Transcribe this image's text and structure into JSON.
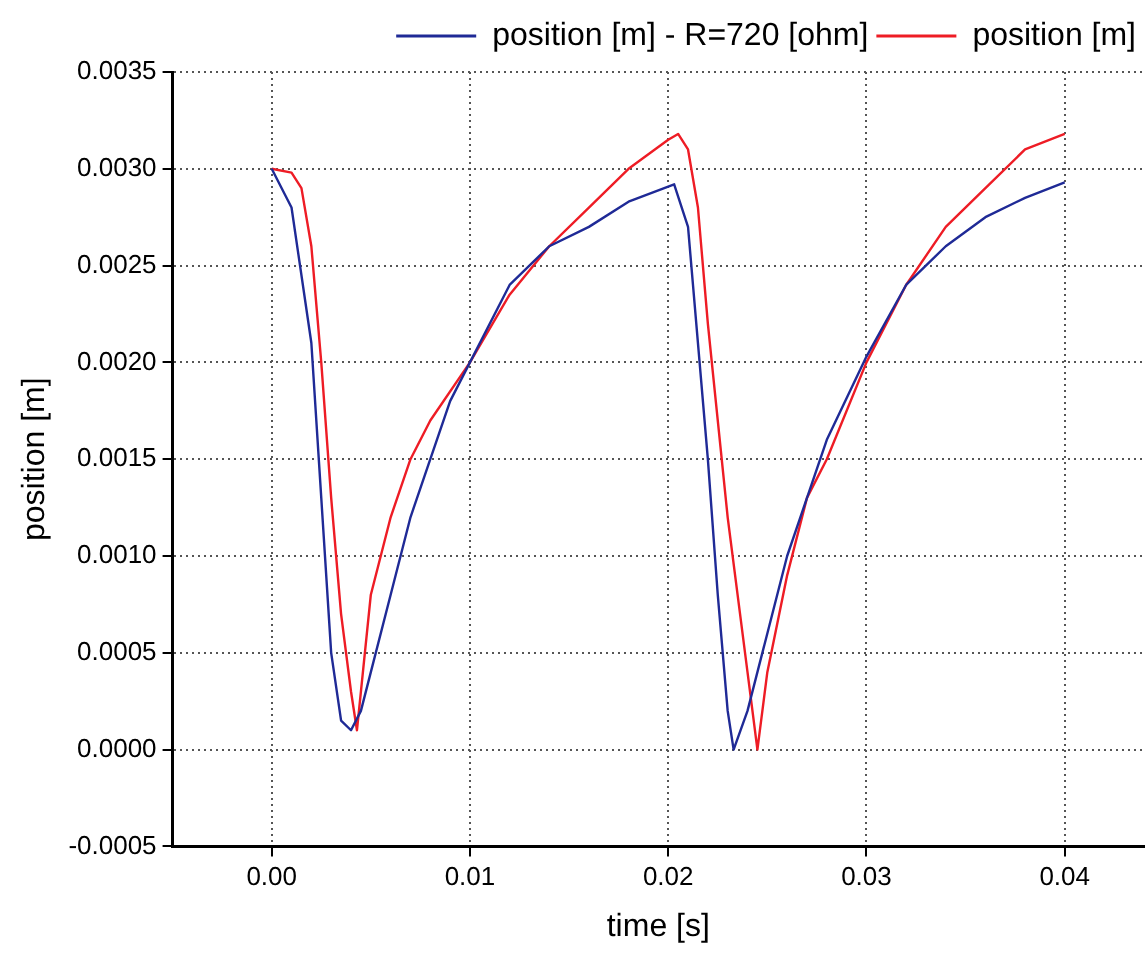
{
  "chart_data": {
    "type": "line",
    "xlabel": "time [s]",
    "ylabel": "position [m]",
    "xlim": [
      -0.005,
      0.044
    ],
    "ylim": [
      -0.0005,
      0.0035
    ],
    "xticks": [
      {
        "value": 0,
        "label": "0.00"
      },
      {
        "value": 0.01,
        "label": "0.01"
      },
      {
        "value": 0.02,
        "label": "0.02"
      },
      {
        "value": 0.03,
        "label": "0.03"
      },
      {
        "value": 0.04,
        "label": "0.04"
      }
    ],
    "yticks": [
      {
        "value": -0.0005,
        "label": "-0.0005"
      },
      {
        "value": 0,
        "label": "0.0000"
      },
      {
        "value": 0.0005,
        "label": "0.0005"
      },
      {
        "value": 0.001,
        "label": "0.0010"
      },
      {
        "value": 0.0015,
        "label": "0.0015"
      },
      {
        "value": 0.002,
        "label": "0.0020"
      },
      {
        "value": 0.0025,
        "label": "0.0025"
      },
      {
        "value": 0.003,
        "label": "0.0030"
      },
      {
        "value": 0.0035,
        "label": "0.0035"
      }
    ],
    "grid": true,
    "legend": "top right",
    "marker": "none",
    "line_style": "solid",
    "series": [
      {
        "name": "position [m] - R=720 [ohm]",
        "color": "#1f2a96",
        "x": [
          0,
          0.001,
          0.002,
          0.0025,
          0.003,
          0.0035,
          0.004,
          0.0045,
          0.005,
          0.006,
          0.007,
          0.008,
          0.009,
          0.01,
          0.012,
          0.014,
          0.016,
          0.018,
          0.0203,
          0.021,
          0.022,
          0.0225,
          0.023,
          0.0233,
          0.024,
          0.025,
          0.026,
          0.028,
          0.03,
          0.032,
          0.034,
          0.036,
          0.038,
          0.04
        ],
        "values": [
          0.003,
          0.0028,
          0.0021,
          0.0013,
          0.0005,
          0.00015,
          0.0001,
          0.0002,
          0.0004,
          0.0008,
          0.0012,
          0.0015,
          0.0018,
          0.002,
          0.0024,
          0.0026,
          0.0027,
          0.00283,
          0.00292,
          0.0027,
          0.0015,
          0.0008,
          0.0002,
          0,
          0.0002,
          0.0006,
          0.001,
          0.0016,
          0.00203,
          0.0024,
          0.0026,
          0.00275,
          0.00285,
          0.00293
        ]
      },
      {
        "name": "position [m]",
        "color": "#ee1c25",
        "x": [
          0,
          0.001,
          0.0015,
          0.002,
          0.0025,
          0.003,
          0.0035,
          0.004,
          0.0043,
          0.0045,
          0.005,
          0.006,
          0.007,
          0.008,
          0.01,
          0.012,
          0.014,
          0.016,
          0.018,
          0.02,
          0.0205,
          0.021,
          0.0215,
          0.022,
          0.023,
          0.024,
          0.0245,
          0.025,
          0.026,
          0.027,
          0.028,
          0.03,
          0.032,
          0.034,
          0.036,
          0.038,
          0.04
        ],
        "values": [
          0.003,
          0.00298,
          0.0029,
          0.0026,
          0.002,
          0.0013,
          0.0007,
          0.0003,
          0.0001,
          0.0003,
          0.0008,
          0.0012,
          0.0015,
          0.0017,
          0.002,
          0.00235,
          0.0026,
          0.0028,
          0.003,
          0.00315,
          0.00318,
          0.0031,
          0.0028,
          0.0022,
          0.0012,
          0.0004,
          0,
          0.0004,
          0.0009,
          0.0013,
          0.0015,
          0.002,
          0.0024,
          0.0027,
          0.0029,
          0.0031,
          0.00318
        ]
      }
    ]
  }
}
